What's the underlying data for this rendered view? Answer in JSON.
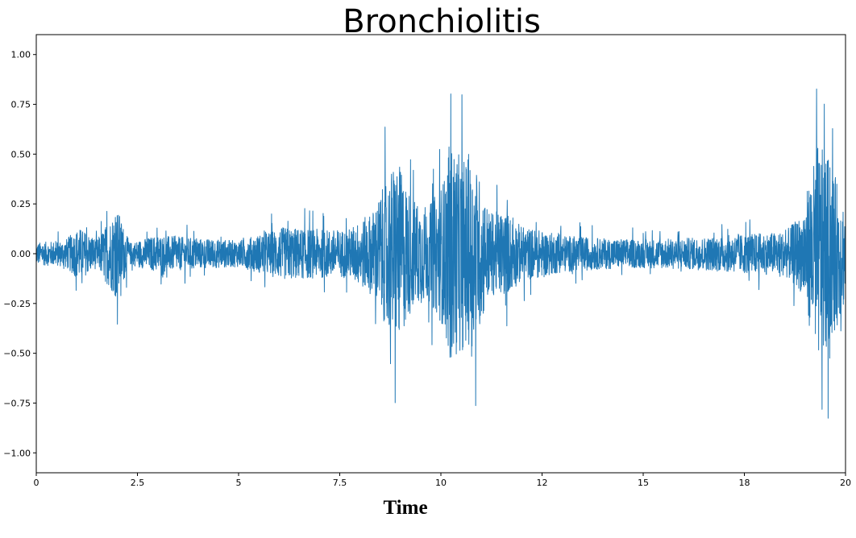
{
  "chart_data": {
    "type": "line",
    "title": "Bronchiolitis",
    "xlabel": "Time",
    "ylabel": "",
    "xlim": [
      0,
      20
    ],
    "ylim": [
      -1.1,
      1.1
    ],
    "x_ticks": [
      0,
      2.5,
      5,
      7.5,
      10,
      12.5,
      15,
      17.5,
      20
    ],
    "x_tick_labels": [
      "0",
      "2.5",
      "5",
      "7.5",
      "10",
      "12",
      "15",
      "18",
      "20"
    ],
    "y_ticks": [
      1.0,
      0.75,
      0.5,
      0.25,
      0.0,
      -0.25,
      -0.5,
      -0.75,
      -1.0
    ],
    "y_tick_labels": [
      "1.00",
      "0.75",
      "0.50",
      "0.25",
      "0.00",
      "−0.25",
      "−0.50",
      "−0.75",
      "−1.00"
    ],
    "grid": false,
    "legend": "none",
    "series": [
      {
        "color": "#1f77b4",
        "envelope": [
          {
            "t": 0.0,
            "amp": 0.1
          },
          {
            "t": 0.3,
            "amp": 0.11
          },
          {
            "t": 0.7,
            "amp": 0.12
          },
          {
            "t": 1.05,
            "amp": 0.24
          },
          {
            "t": 1.5,
            "amp": 0.13
          },
          {
            "t": 2.0,
            "amp": 0.42
          },
          {
            "t": 2.3,
            "amp": 0.1
          },
          {
            "t": 3.0,
            "amp": 0.17
          },
          {
            "t": 4.0,
            "amp": 0.14
          },
          {
            "t": 5.0,
            "amp": 0.12
          },
          {
            "t": 6.1,
            "amp": 0.24
          },
          {
            "t": 7.2,
            "amp": 0.22
          },
          {
            "t": 7.7,
            "amp": 0.22
          },
          {
            "t": 8.3,
            "amp": 0.38
          },
          {
            "t": 8.9,
            "amp": 0.87
          },
          {
            "t": 9.3,
            "amp": 0.5
          },
          {
            "t": 9.7,
            "amp": 0.43
          },
          {
            "t": 10.05,
            "amp": 0.66
          },
          {
            "t": 10.25,
            "amp": 1.0
          },
          {
            "t": 10.45,
            "amp": 0.9
          },
          {
            "t": 10.85,
            "amp": 0.83
          },
          {
            "t": 11.2,
            "amp": 0.38
          },
          {
            "t": 11.6,
            "amp": 0.39
          },
          {
            "t": 12.0,
            "amp": 0.25
          },
          {
            "t": 13.0,
            "amp": 0.17
          },
          {
            "t": 14.0,
            "amp": 0.14
          },
          {
            "t": 15.0,
            "amp": 0.13
          },
          {
            "t": 16.5,
            "amp": 0.15
          },
          {
            "t": 17.5,
            "amp": 0.18
          },
          {
            "t": 18.5,
            "amp": 0.2
          },
          {
            "t": 18.9,
            "amp": 0.35
          },
          {
            "t": 19.2,
            "amp": 0.8
          },
          {
            "t": 19.3,
            "amp": 1.0
          },
          {
            "t": 19.55,
            "amp": 0.9
          },
          {
            "t": 19.8,
            "amp": 0.65
          },
          {
            "t": 20.0,
            "amp": 0.45
          }
        ]
      }
    ]
  }
}
